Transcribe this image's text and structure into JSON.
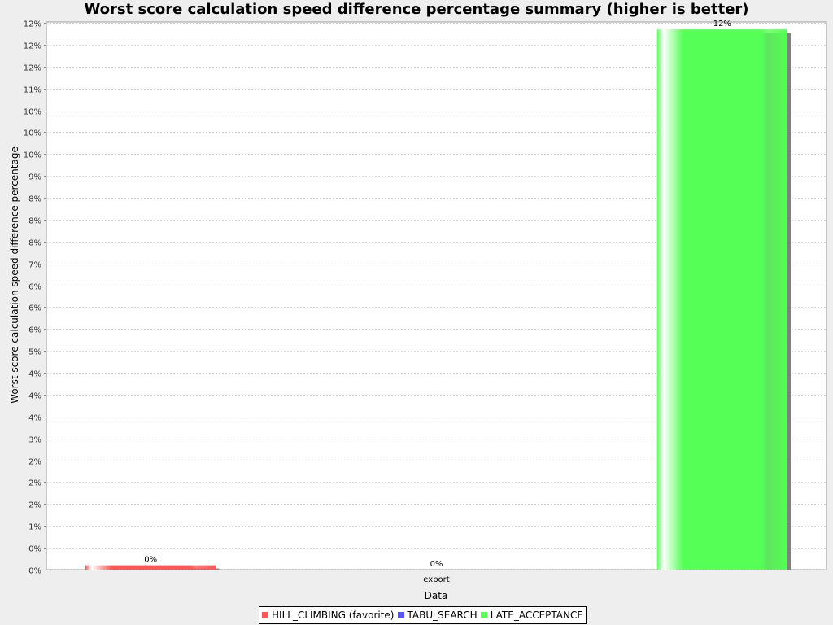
{
  "chart_data": {
    "type": "bar",
    "title": "Worst score calculation speed difference percentage summary (higher is better)",
    "xlabel": "Data",
    "ylabel": "Worst score calculation speed difference percentage",
    "categories": [
      "export"
    ],
    "series": [
      {
        "name": "HILL_CLIMBING (favorite)",
        "values": [
          0.001
        ],
        "label": "0%",
        "color": "#ff5555"
      },
      {
        "name": "TABU_SEARCH",
        "values": [
          0
        ],
        "label": "0%",
        "color": "#5555ff"
      },
      {
        "name": "LATE_ACCEPTANCE",
        "values": [
          0.1235
        ],
        "label": "12%",
        "color": "#55ff55"
      }
    ],
    "ylim": [
      0,
      0.1252
    ],
    "yticks": [
      0,
      0.005,
      0.01,
      0.015,
      0.02,
      0.025,
      0.03,
      0.035,
      0.04,
      0.045,
      0.05,
      0.055,
      0.06,
      0.065,
      0.07,
      0.075,
      0.08,
      0.085,
      0.09,
      0.095,
      0.1,
      0.105,
      0.11,
      0.115,
      0.12,
      0.125
    ],
    "ytick_labels": [
      "0%",
      "0%",
      "1%",
      "2%",
      "2%",
      "2%",
      "3%",
      "4%",
      "4%",
      "4%",
      "5%",
      "6%",
      "6%",
      "6%",
      "7%",
      "8%",
      "8%",
      "8%",
      "9%",
      "10%",
      "10%",
      "10%",
      "11%",
      "12%",
      "12%",
      "12%"
    ],
    "grid": true,
    "legend_position": "bottom"
  }
}
